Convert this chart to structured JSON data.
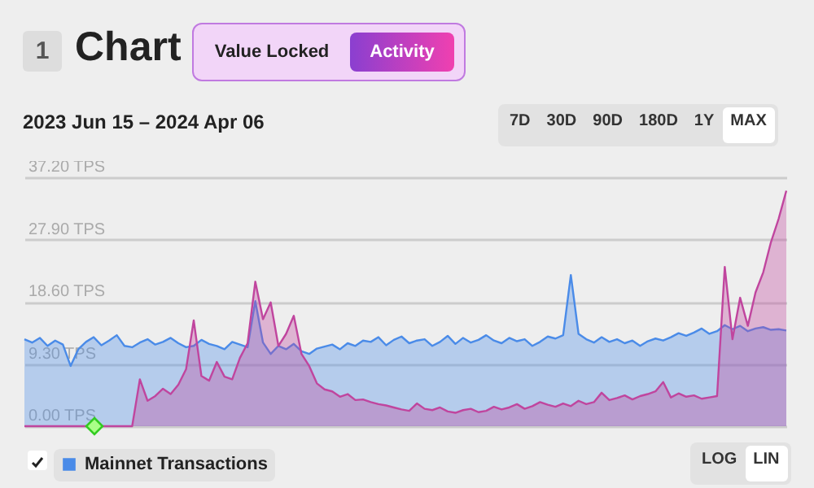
{
  "chart_data": {
    "type": "area",
    "title": "Chart",
    "subtitle": "2023 Jun 15 – 2024 Apr 06",
    "annotations": [
      "1",
      "Value Locked",
      "Activity",
      "7D",
      "30D",
      "90D",
      "180D",
      "1Y",
      "MAX",
      "LOG",
      "LIN"
    ],
    "categories": [
      null,
      null,
      null,
      null,
      null,
      null,
      null,
      null,
      null,
      null,
      null,
      null,
      null,
      null,
      null,
      null,
      null,
      null,
      null,
      null,
      null,
      null,
      null,
      null,
      null,
      null,
      null,
      null,
      null,
      null,
      null,
      null,
      null,
      null,
      null,
      null,
      null,
      null,
      null,
      null,
      null,
      null,
      null,
      null,
      null,
      null,
      null,
      null,
      null,
      null,
      null,
      null,
      null,
      null,
      null,
      null,
      null,
      null,
      null,
      null,
      null,
      null,
      null,
      null,
      null,
      null,
      null,
      null,
      null,
      null,
      null,
      null,
      null,
      null,
      null,
      null,
      null,
      null,
      null,
      null,
      null,
      null,
      null,
      null,
      null,
      null,
      null,
      null,
      null,
      null,
      null,
      null,
      null,
      null,
      null,
      null,
      null,
      null,
      null,
      null
    ],
    "series": [
      {
        "name": "Mainnet Transactions",
        "color": "#4a8be8",
        "values": [
          13.0,
          12.5,
          13.2,
          12.0,
          12.8,
          12.2,
          9.0,
          11.5,
          12.6,
          13.3,
          12.1,
          12.8,
          13.6,
          12.0,
          11.8,
          12.5,
          13.0,
          12.2,
          12.6,
          13.2,
          12.4,
          11.8,
          12.0,
          12.9,
          12.3,
          12.0,
          11.5,
          12.6,
          12.2,
          11.8,
          18.7,
          12.5,
          10.8,
          12.0,
          11.5,
          12.3,
          11.2,
          10.8,
          11.6,
          11.9,
          12.2,
          11.5,
          12.4,
          12.0,
          12.8,
          12.6,
          13.3,
          12.1,
          12.9,
          13.4,
          12.4,
          12.8,
          13.0,
          12.0,
          12.6,
          13.5,
          12.3,
          13.2,
          12.5,
          12.9,
          13.6,
          12.8,
          12.4,
          13.2,
          12.7,
          13.0,
          12.0,
          12.6,
          13.4,
          13.1,
          13.6,
          22.6,
          13.8,
          13.0,
          12.5,
          13.3,
          12.6,
          13.0,
          12.4,
          12.8,
          12.0,
          12.7,
          13.1,
          12.8,
          13.3,
          13.9,
          13.5,
          14.0,
          14.6,
          13.8,
          14.2,
          15.1,
          14.5,
          15.0,
          14.2,
          14.6,
          14.8,
          14.4,
          14.5,
          14.3
        ]
      },
      {
        "color": "#c0459e",
        "values": [
          0,
          0,
          0,
          0,
          0,
          0,
          0,
          0,
          0,
          0,
          0,
          0,
          0,
          0,
          0,
          7.0,
          3.8,
          4.5,
          5.6,
          4.8,
          6.2,
          8.5,
          15.8,
          7.5,
          6.8,
          9.6,
          7.4,
          7.0,
          10.2,
          12.4,
          21.6,
          16.0,
          18.5,
          12.0,
          13.8,
          16.5,
          10.8,
          9.0,
          6.4,
          5.5,
          5.2,
          4.4,
          4.8,
          3.9,
          4.0,
          3.6,
          3.3,
          3.1,
          2.8,
          2.5,
          2.3,
          3.4,
          2.6,
          2.4,
          2.8,
          2.2,
          2.0,
          2.4,
          2.6,
          2.1,
          2.3,
          2.9,
          2.5,
          2.8,
          3.3,
          2.6,
          3.0,
          3.6,
          3.2,
          2.9,
          3.4,
          3.0,
          3.8,
          3.3,
          3.6,
          5.0,
          3.9,
          4.2,
          4.6,
          4.0,
          4.5,
          4.8,
          5.2,
          6.6,
          4.3,
          4.9,
          4.4,
          4.6,
          4.1,
          4.3,
          4.5,
          23.8,
          13.0,
          19.2,
          15.0,
          20.0,
          23.0,
          27.5,
          31.0,
          35.2
        ]
      }
    ],
    "ylim": [
      0,
      37.2
    ],
    "yticks": [
      {
        "value": 0,
        "label": "0.00 TPS"
      },
      {
        "value": 9.3,
        "label": "9.30 TPS"
      },
      {
        "value": 18.6,
        "label": "18.60 TPS"
      },
      {
        "value": 27.9,
        "label": "27.90 TPS"
      },
      {
        "value": 37.2,
        "label": "37.20 TPS"
      }
    ],
    "grid": "y",
    "legend": "bottom left",
    "tick_labels": "y"
  }
}
